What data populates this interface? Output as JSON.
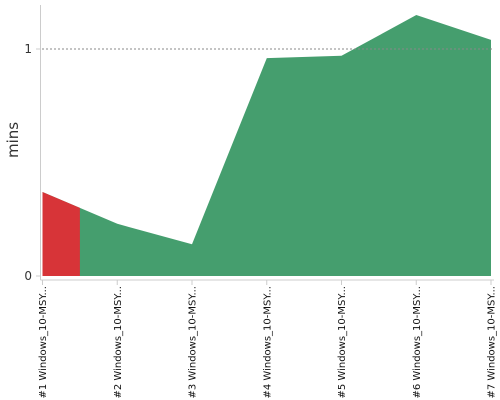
{
  "chart_data": {
    "type": "area",
    "categories": [
      "#1 Windows_10-MSY...",
      "#2 Windows_10-MSY...",
      "#3 Windows_10-MSY...",
      "#4 Windows_10-MSY...",
      "#5 Windows_10-MSY...",
      "#6 Windows_10-MSY...",
      "#7 Windows_10-MSY..."
    ],
    "values": [
      0.37,
      0.23,
      0.14,
      0.96,
      0.97,
      1.15,
      1.04
    ],
    "ylabel": "mins",
    "xlabel": "",
    "yticks": [
      0,
      1
    ],
    "ylim": [
      0,
      1.2
    ],
    "reference_line": 1,
    "highlight_first_segment": true,
    "colors": {
      "area": "#459e6e",
      "highlight": "#d73438",
      "axis": "#cccccc",
      "reference": "#888888"
    }
  }
}
